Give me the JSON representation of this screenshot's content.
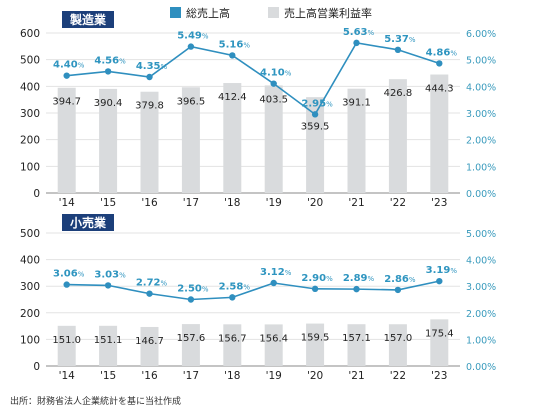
{
  "legend": {
    "sales": {
      "label": "総売上高",
      "color": "#2f8fbf"
    },
    "margin": {
      "label": "売上高営業利益率",
      "color": "#d9dbdd"
    }
  },
  "source": "出所：財務省法人企業統計を基に当社作成",
  "chart_data": [
    {
      "type": "bar+line",
      "tag": "製造業",
      "categories": [
        "'14",
        "'15",
        "'16",
        "'17",
        "'18",
        "'19",
        "'20",
        "'21",
        "'22",
        "'23"
      ],
      "bar_values": [
        394.7,
        390.4,
        379.8,
        396.5,
        412.4,
        403.5,
        359.5,
        391.1,
        426.8,
        444.3
      ],
      "bar_labels": [
        "394.7",
        "390.4",
        "379.8",
        "396.5",
        "412.4",
        "403.5",
        "359.5",
        "391.1",
        "426.8",
        "444.3"
      ],
      "line_values": [
        4.4,
        4.56,
        4.35,
        5.49,
        5.16,
        4.1,
        2.95,
        5.63,
        5.37,
        4.86
      ],
      "line_labels": [
        "4.40",
        "4.56",
        "4.35",
        "5.49",
        "5.16",
        "4.10",
        "2.95",
        "5.63",
        "5.37",
        "4.86"
      ],
      "pct_unit": "%",
      "left_ticks": [
        "0",
        "100",
        "200",
        "300",
        "400",
        "500",
        "600"
      ],
      "right_ticks": [
        "0.00%",
        "1.00%",
        "2.00%",
        "3.00%",
        "4.00%",
        "5.00%",
        "6.00%"
      ],
      "ylim": [
        0,
        600
      ],
      "y2lim": [
        0,
        6
      ]
    },
    {
      "type": "bar+line",
      "tag": "小売業",
      "categories": [
        "'14",
        "'15",
        "'16",
        "'17",
        "'18",
        "'19",
        "'20",
        "'21",
        "'22",
        "'23"
      ],
      "bar_values": [
        151.0,
        151.1,
        146.7,
        157.6,
        156.7,
        156.4,
        159.5,
        157.1,
        157.0,
        175.4
      ],
      "bar_labels": [
        "151.0",
        "151.1",
        "146.7",
        "157.6",
        "156.7",
        "156.4",
        "159.5",
        "157.1",
        "157.0",
        "175.4"
      ],
      "line_values": [
        3.06,
        3.03,
        2.72,
        2.5,
        2.58,
        3.12,
        2.9,
        2.89,
        2.86,
        3.19
      ],
      "line_labels": [
        "3.06",
        "3.03",
        "2.72",
        "2.50",
        "2.58",
        "3.12",
        "2.90",
        "2.89",
        "2.86",
        "3.19"
      ],
      "pct_unit": "%",
      "left_ticks": [
        "0",
        "100",
        "200",
        "300",
        "400",
        "500"
      ],
      "right_ticks": [
        "0.00%",
        "1.00%",
        "2.00%",
        "3.00%",
        "4.00%",
        "5.00%"
      ],
      "ylim": [
        0,
        500
      ],
      "y2lim": [
        0,
        5
      ]
    }
  ]
}
